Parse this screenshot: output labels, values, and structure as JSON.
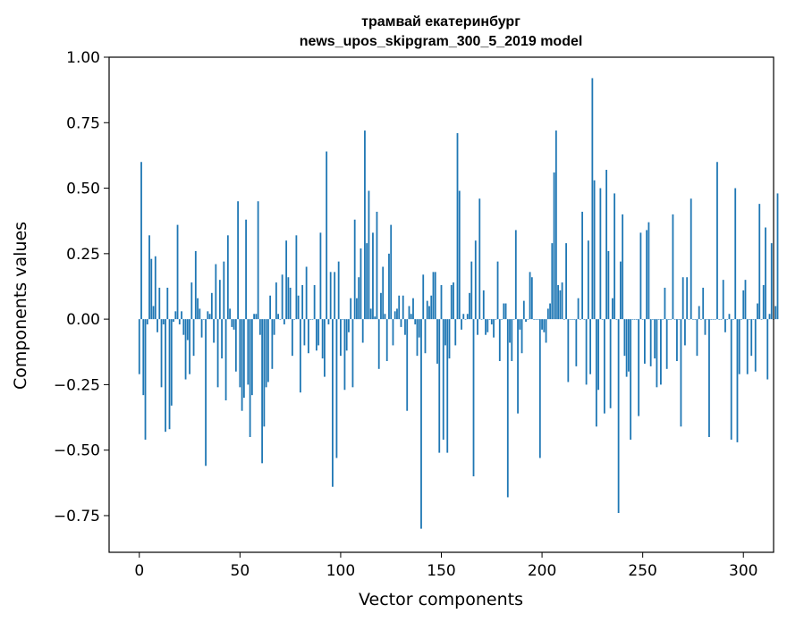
{
  "chart_data": {
    "type": "bar",
    "title_line1": "трамвай екатеринбург",
    "title_line2": "news_upos_skipgram_300_5_2019 model",
    "xlabel": "Vector components",
    "ylabel": "Components values",
    "xlim": [
      -15,
      315
    ],
    "ylim": [
      -0.89,
      1.0
    ],
    "xticks": [
      0,
      50,
      100,
      150,
      200,
      250,
      300
    ],
    "xtick_labels": [
      "0",
      "50",
      "100",
      "150",
      "200",
      "250",
      "300"
    ],
    "yticks": [
      -0.75,
      -0.5,
      -0.25,
      0.0,
      0.25,
      0.5,
      0.75,
      1.0
    ],
    "ytick_labels": [
      "−0.75",
      "−0.50",
      "−0.25",
      "0.00",
      "0.25",
      "0.50",
      "0.75",
      "1.00"
    ],
    "grid": false,
    "bar_color": "#1f77b4",
    "values": [
      -0.21,
      0.6,
      -0.29,
      -0.46,
      -0.02,
      0.32,
      0.23,
      0.05,
      0.24,
      -0.05,
      0.12,
      -0.26,
      -0.02,
      -0.43,
      0.12,
      -0.42,
      -0.33,
      -0.01,
      0.03,
      0.36,
      -0.02,
      0.03,
      -0.06,
      -0.23,
      -0.08,
      -0.21,
      0.14,
      -0.14,
      0.26,
      0.08,
      0.04,
      -0.07,
      0.0,
      -0.56,
      0.03,
      0.02,
      0.1,
      -0.09,
      0.21,
      -0.26,
      0.15,
      -0.15,
      0.22,
      -0.31,
      0.32,
      0.04,
      -0.03,
      -0.04,
      -0.2,
      0.45,
      -0.26,
      -0.35,
      -0.3,
      0.38,
      -0.25,
      -0.45,
      -0.29,
      0.02,
      0.02,
      0.45,
      -0.06,
      -0.55,
      -0.41,
      -0.26,
      -0.24,
      0.09,
      -0.19,
      -0.06,
      0.14,
      0.02,
      0.0,
      0.17,
      -0.02,
      0.3,
      0.16,
      0.12,
      -0.14,
      0.0,
      0.32,
      0.09,
      -0.28,
      0.13,
      -0.1,
      0.2,
      -0.13,
      0.0,
      0.0,
      0.13,
      -0.12,
      -0.1,
      0.33,
      -0.15,
      -0.22,
      0.64,
      -0.02,
      0.18,
      -0.64,
      0.18,
      -0.53,
      0.22,
      -0.14,
      0.0,
      -0.27,
      -0.12,
      -0.05,
      0.08,
      -0.26,
      0.38,
      0.08,
      0.16,
      0.27,
      -0.09,
      0.72,
      0.29,
      0.49,
      0.04,
      0.33,
      0.01,
      0.41,
      -0.19,
      0.1,
      0.2,
      0.02,
      -0.16,
      0.25,
      0.36,
      -0.1,
      0.03,
      0.04,
      0.09,
      -0.03,
      0.09,
      -0.06,
      -0.35,
      0.05,
      0.02,
      0.08,
      -0.02,
      -0.14,
      -0.07,
      -0.8,
      0.17,
      -0.13,
      0.07,
      0.05,
      0.09,
      0.18,
      0.18,
      -0.17,
      -0.51,
      0.13,
      -0.46,
      -0.1,
      -0.51,
      -0.15,
      0.13,
      0.14,
      -0.1,
      0.71,
      0.49,
      -0.04,
      0.02,
      0.0,
      0.02,
      0.1,
      0.22,
      -0.6,
      0.3,
      -0.06,
      0.46,
      0.0,
      0.11,
      -0.06,
      -0.05,
      0.0,
      -0.02,
      -0.07,
      0.0,
      0.22,
      -0.16,
      0.0,
      0.06,
      0.06,
      -0.68,
      -0.09,
      -0.16,
      0.0,
      0.34,
      -0.36,
      -0.04,
      -0.13,
      0.07,
      -0.01,
      0.0,
      0.18,
      0.16,
      0.0,
      0.0,
      0.0,
      -0.53,
      -0.04,
      -0.05,
      -0.09,
      0.04,
      0.06,
      0.29,
      0.56,
      0.72,
      0.13,
      0.11,
      0.14,
      0.0,
      0.29,
      -0.24,
      0.0,
      0.0,
      0.0,
      -0.18,
      0.08,
      0.0,
      0.41,
      0.0,
      -0.25,
      0.3,
      -0.21,
      0.92,
      0.53,
      -0.41,
      -0.27,
      0.5,
      0.0,
      -0.36,
      0.57,
      0.26,
      -0.34,
      0.08,
      0.48,
      0.0,
      -0.74,
      0.22,
      0.4,
      -0.14,
      -0.22,
      -0.2,
      -0.46,
      0.0,
      0.0,
      0.0,
      -0.37,
      0.33,
      0.0,
      -0.17,
      0.34,
      0.37,
      -0.18,
      0.0,
      -0.15,
      -0.26,
      0.0,
      -0.25,
      0.0,
      0.12,
      -0.19,
      0.0,
      0.0,
      0.4,
      0.0,
      -0.16,
      0.0,
      -0.41,
      0.16,
      -0.1,
      0.16,
      0.0,
      0.46,
      0.0,
      0.0,
      -0.14,
      0.05,
      0.0,
      0.12,
      -0.06,
      0.0,
      -0.45,
      0.0,
      0.0,
      0.0,
      0.6,
      0.0,
      0.0,
      0.15,
      -0.05,
      0.0,
      0.02,
      -0.46,
      0.0,
      0.5,
      -0.47,
      -0.21,
      0.0,
      0.11,
      0.15,
      -0.21,
      0.0,
      -0.14,
      0.0,
      -0.2,
      0.06,
      0.44,
      0.0,
      0.13,
      0.35,
      -0.23,
      0.02,
      0.29,
      0.0,
      0.05,
      0.48
    ]
  }
}
